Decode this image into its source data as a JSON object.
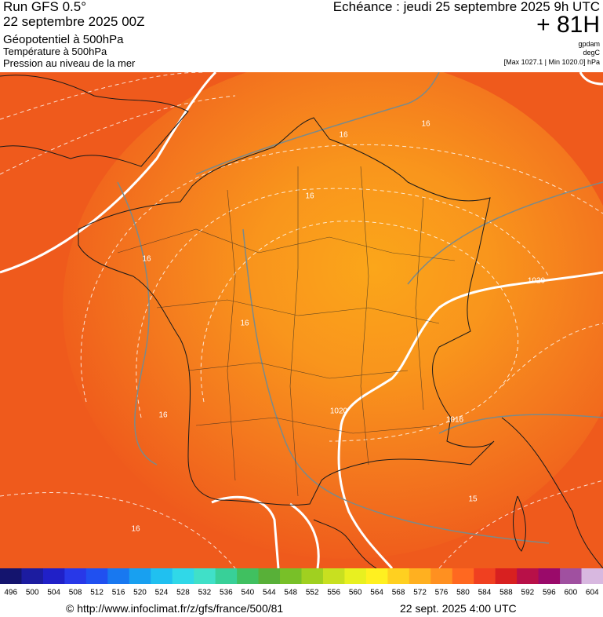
{
  "header": {
    "run": "Run GFS 0.5°",
    "date": "22 septembre 2025 00Z",
    "line1": "Géopotentiel à 500hPa",
    "line2": "Température à 500hPa",
    "line3": "Pression au niveau de la mer",
    "forecast": "Echéance : jeudi 25 septembre 2025 9h UTC",
    "lead": "+ 81H",
    "unit1": "gpdam",
    "unit2": "degC",
    "extremes": "[Max 1027.1 | Min 1020.0] hPa"
  },
  "map": {
    "contour_labels": [
      16,
      16,
      16,
      16,
      16,
      16,
      1020,
      1020,
      1016,
      15,
      16
    ]
  },
  "colorbar": {
    "labels": [
      496,
      500,
      504,
      508,
      512,
      516,
      520,
      524,
      528,
      532,
      536,
      540,
      544,
      548,
      552,
      556,
      560,
      564,
      568,
      572,
      576,
      580,
      584,
      588,
      592,
      596,
      600,
      604
    ],
    "colors": [
      "#14146e",
      "#1c1ca0",
      "#2020c8",
      "#2838e8",
      "#2050f0",
      "#1878f0",
      "#18a0f0",
      "#20c0f0",
      "#30d8e8",
      "#40e0c8",
      "#38d098",
      "#40c060",
      "#58b038",
      "#78c028",
      "#a0d020",
      "#c8e020",
      "#e8f020",
      "#fff020",
      "#ffd020",
      "#ffb020",
      "#ff9020",
      "#ff6820",
      "#f04020",
      "#d82020",
      "#b81048",
      "#9a0a6a",
      "#a050a0",
      "#d8b8e0"
    ]
  },
  "footer": {
    "url": "© http://www.infoclimat.fr/z/gfs/france/500/81",
    "time": "22 sept. 2025  4:00 UTC"
  }
}
